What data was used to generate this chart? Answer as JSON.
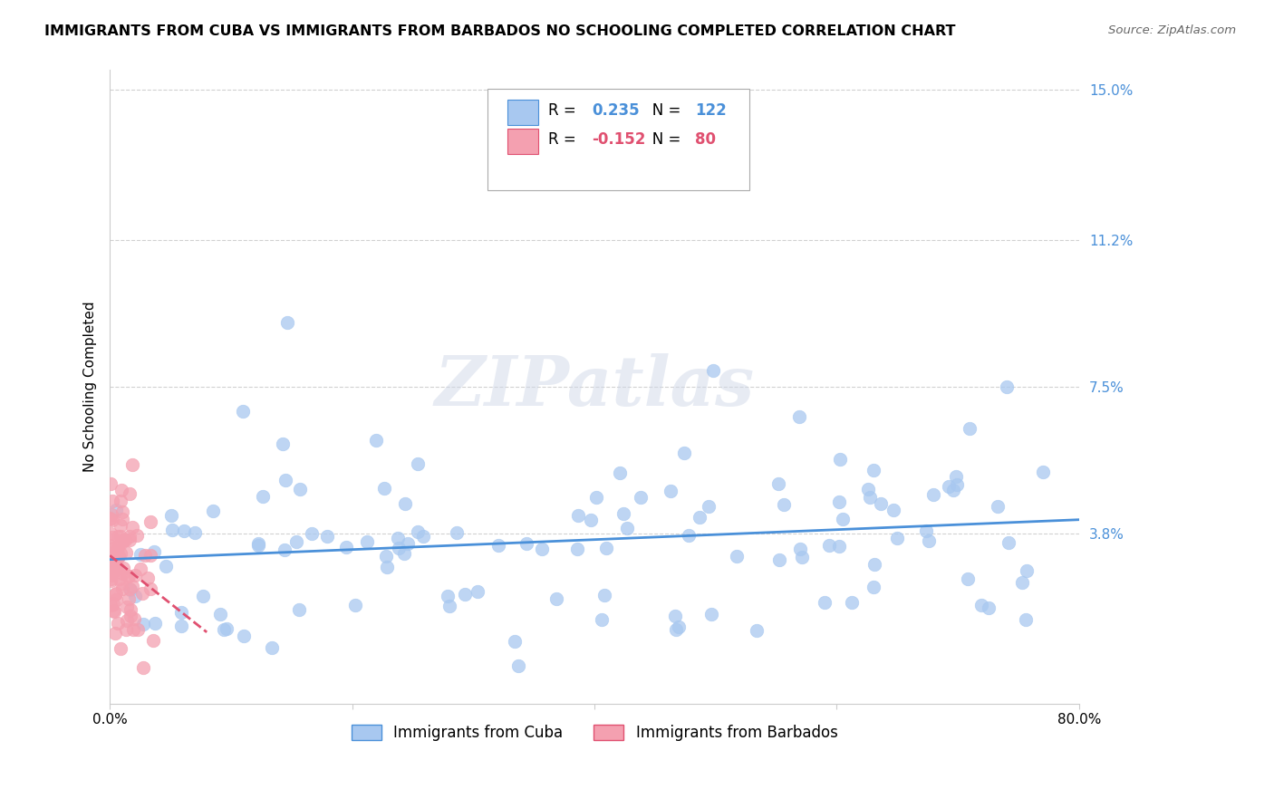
{
  "title": "IMMIGRANTS FROM CUBA VS IMMIGRANTS FROM BARBADOS NO SCHOOLING COMPLETED CORRELATION CHART",
  "source": "Source: ZipAtlas.com",
  "ylabel": "No Schooling Completed",
  "xlim": [
    0.0,
    0.8
  ],
  "ylim": [
    -0.005,
    0.155
  ],
  "yticks": [
    0.038,
    0.075,
    0.112,
    0.15
  ],
  "ytick_labels": [
    "3.8%",
    "7.5%",
    "11.2%",
    "15.0%"
  ],
  "xticks": [
    0.0,
    0.2,
    0.4,
    0.6,
    0.8
  ],
  "xtick_labels": [
    "0.0%",
    "",
    "",
    "",
    "80.0%"
  ],
  "cuba_color": "#a8c8f0",
  "barbados_color": "#f4a0b0",
  "cuba_line_color": "#4a90d9",
  "barbados_line_color": "#e05070",
  "cuba_R": 0.235,
  "cuba_N": 122,
  "barbados_R": -0.152,
  "barbados_N": 80,
  "legend_cuba_label": "Immigrants from Cuba",
  "legend_barbados_label": "Immigrants from Barbados",
  "watermark": "ZIPatlas",
  "background_color": "#ffffff",
  "title_fontsize": 11.5,
  "axis_label_fontsize": 11,
  "tick_fontsize": 11,
  "legend_fontsize": 12
}
